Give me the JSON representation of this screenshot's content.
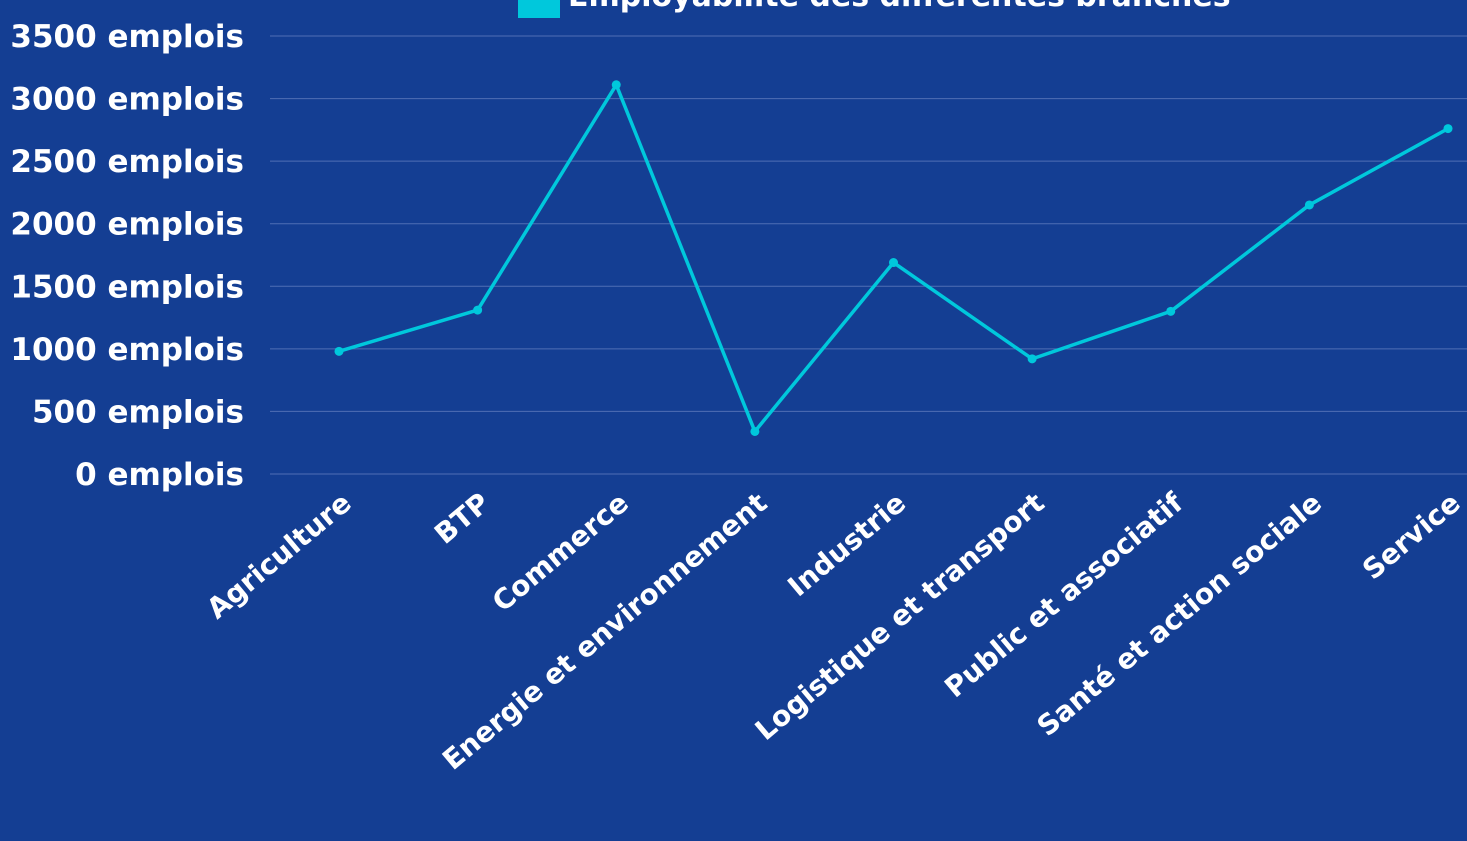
{
  "chart_data": {
    "type": "line",
    "title": "",
    "xlabel": "",
    "ylabel": "",
    "categories": [
      "Agriculture",
      "BTP",
      "Commerce",
      "Energie et environnement",
      "Industrie",
      "Logistique et transport",
      "Public et associatif",
      "Santé et action sociale",
      "Service"
    ],
    "series": [
      {
        "name": "Employabilité des différentes branches",
        "values": [
          980,
          1310,
          3110,
          340,
          1690,
          920,
          1300,
          2150,
          2760
        ],
        "color": "#00c8dc"
      }
    ],
    "yticks": [
      0,
      500,
      1000,
      1500,
      2000,
      2500,
      3000,
      3500
    ],
    "ytick_suffix": " emplois",
    "ylim": [
      0,
      3500
    ],
    "grid": true,
    "legend_position": "top"
  },
  "colors": {
    "background": "#143e93",
    "gridline": "#4f6eb5",
    "series": "#00c8dc",
    "text": "#ffffff"
  }
}
